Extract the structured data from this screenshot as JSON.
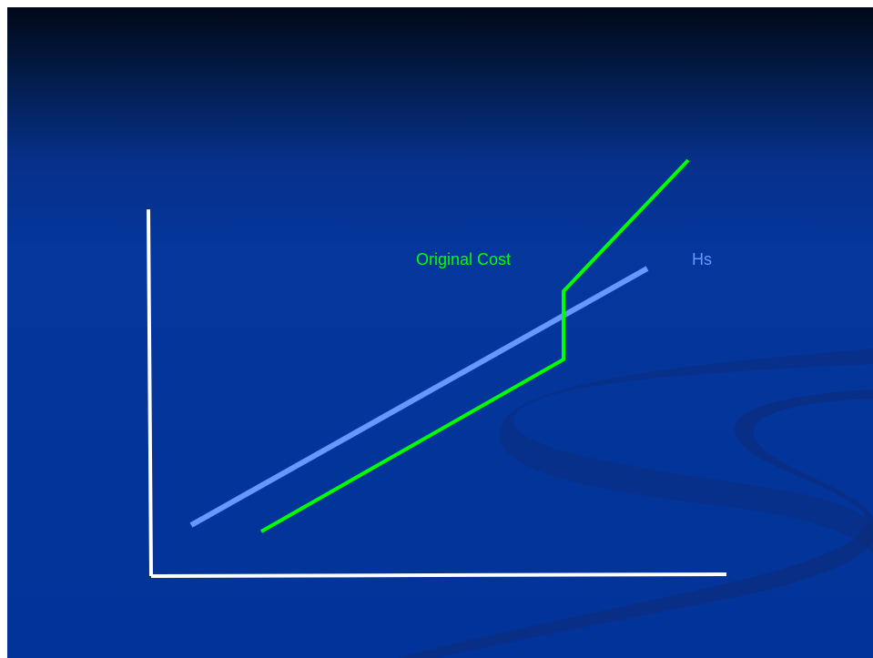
{
  "slide": {
    "background_top": "#010818",
    "background_main": "#04369b"
  },
  "diagram": {
    "axes_color": "#ffffff",
    "lines": [
      {
        "id": "hs",
        "label": "Hs",
        "color": "#6699ff"
      },
      {
        "id": "original-cost",
        "label": "Original Cost",
        "color": "#00ff00"
      }
    ]
  }
}
